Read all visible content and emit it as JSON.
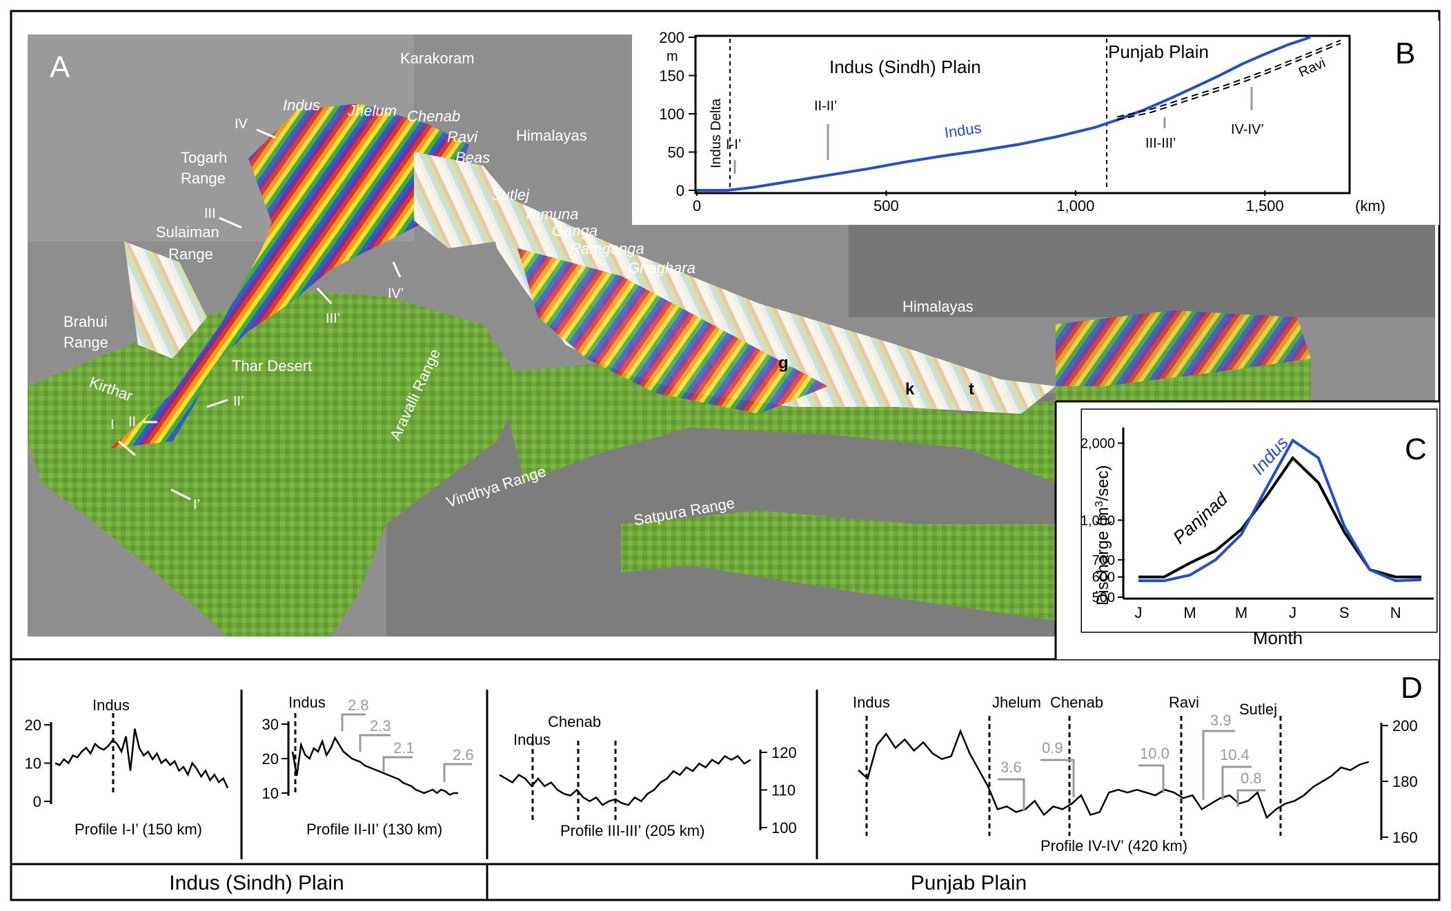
{
  "panel_a": {
    "letter": "A",
    "mountains": [
      "Karakoram",
      "Himalayas",
      "Himalayas"
    ],
    "ranges": {
      "togarh": [
        "Togarh",
        "Range"
      ],
      "sulaiman": [
        "Sulaiman",
        "Range"
      ],
      "brahui": [
        "Brahui",
        "Range"
      ],
      "kirthar": "Kirthar",
      "aravalli": "Aravalli Range",
      "vindhya": "Vindhya Range",
      "satpura": "Satpura Range"
    },
    "desert": "Thar Desert",
    "rivers": [
      "Indus",
      "Jhelum",
      "Chenab",
      "Ravi",
      "Beas",
      "Sutlej",
      "Yamuna",
      "Ganga",
      "Ramganga",
      "Ghaghara"
    ],
    "profile_marks": [
      "IV",
      "III",
      "I",
      "II",
      "II’",
      "III’",
      "IV’",
      "I’"
    ],
    "points": [
      "g",
      "k",
      "t"
    ]
  },
  "panel_b": {
    "letter": "B",
    "y_ticks": [
      "200",
      "150",
      "100",
      "50",
      "0"
    ],
    "y_unit": "m",
    "x_ticks": [
      "0",
      "500",
      "1,000",
      "1,500"
    ],
    "x_unit": "(km)",
    "regions": [
      "Indus (Sindh) Plain",
      "Punjab Plain"
    ],
    "delta": "Indus Delta",
    "profile_tags": [
      "I-I’",
      "II-II’",
      "III-III’",
      "IV-IV’"
    ],
    "series_labels": [
      "Indus",
      "Ravi"
    ]
  },
  "panel_c": {
    "letter": "C",
    "y_ticks": [
      "2,000",
      "1,000",
      "700",
      "600",
      "500"
    ],
    "ylabel_pre": "Discharge (m",
    "ylabel_sup": "3",
    "ylabel_post": "/sec)",
    "x_ticks": [
      "J",
      "M",
      "M",
      "J",
      "S",
      "N"
    ],
    "xlabel": "Month",
    "series_labels": [
      "Panjnad",
      "Indus"
    ],
    "colors": {
      "Panjnad": "#000000",
      "Indus": "#1f4fd6"
    }
  },
  "panel_d": {
    "letter": "D",
    "p1": {
      "caption": "Profile I-I’ (150 km)",
      "y_ticks": [
        "20",
        "10",
        "0"
      ],
      "rivers": [
        "Indus"
      ]
    },
    "p2": {
      "caption": "Profile II-II’ (130 km)",
      "y_ticks": [
        "30",
        "20",
        "10"
      ],
      "rivers": [
        "Indus"
      ],
      "steps": [
        "2.8",
        "2.3",
        "2.1",
        "2.6"
      ]
    },
    "p3": {
      "caption": "Profile III-III’ (205 km)",
      "y_ticks": [
        "120",
        "110",
        "100"
      ],
      "rivers": [
        "Indus",
        "Chenab"
      ]
    },
    "p4": {
      "caption": "Profile IV-IV’ (420 km)",
      "y_ticks": [
        "200",
        "180",
        "160"
      ],
      "rivers": [
        "Indus",
        "Jhelum",
        "Chenab",
        "Ravi",
        "Sutlej"
      ],
      "steps": [
        "3.6",
        "0.9",
        "10.0",
        "3.9",
        "10.4",
        "0.8"
      ]
    }
  },
  "footer": {
    "left": "Indus (Sindh) Plain",
    "right": "Punjab Plain"
  },
  "chart_data": [
    {
      "type": "line",
      "panel": "B",
      "xlabel": "(km)",
      "ylabel": "m",
      "xlim": [
        0,
        1720
      ],
      "ylim": [
        0,
        200
      ],
      "series": [
        {
          "name": "Indus",
          "color": "#1f4fd6",
          "x": [
            0,
            80,
            150,
            250,
            350,
            450,
            550,
            650,
            750,
            850,
            950,
            1050,
            1110,
            1180,
            1250,
            1320,
            1380,
            1440,
            1500,
            1560,
            1620
          ],
          "y": [
            0,
            0,
            4,
            12,
            20,
            28,
            37,
            45,
            52,
            60,
            70,
            82,
            92,
            105,
            120,
            136,
            150,
            165,
            178,
            190,
            200
          ]
        },
        {
          "name": "Ravi",
          "x": [
            1110,
            1200,
            1300,
            1400,
            1500,
            1600,
            1700
          ],
          "y": [
            92,
            102,
            118,
            134,
            152,
            172,
            192
          ]
        }
      ]
    },
    {
      "type": "line",
      "panel": "C",
      "xlabel": "Month",
      "ylabel": "Discharge (m3/sec)",
      "scale": "log",
      "categories": [
        "J",
        "F",
        "M",
        "A",
        "M",
        "J",
        "J",
        "A",
        "S",
        "O",
        "N",
        "D"
      ],
      "ylim": [
        500,
        2300
      ],
      "series": [
        {
          "name": "Panjnad",
          "color": "#000000",
          "values": [
            600,
            600,
            680,
            760,
            920,
            1250,
            1750,
            1400,
            900,
            640,
            600,
            600
          ]
        },
        {
          "name": "Indus",
          "color": "#1f4fd6",
          "values": [
            580,
            580,
            610,
            700,
            880,
            1350,
            2050,
            1750,
            950,
            640,
            580,
            585
          ]
        }
      ]
    },
    {
      "type": "line",
      "panel": "D",
      "title": "Profile I-I’ (150 km)",
      "ylim": [
        0,
        22
      ],
      "series": [
        {
          "values": [
            10,
            9.5,
            11,
            10,
            12,
            11.5,
            13,
            14,
            12.5,
            15,
            14,
            13.5,
            14.5,
            16,
            15,
            13,
            17,
            8,
            19,
            14,
            12,
            13,
            11,
            12.5,
            10,
            11,
            9.5,
            10.5,
            8,
            9,
            7,
            10,
            8.5,
            6.5,
            8,
            5.5,
            7,
            5,
            6,
            3.5
          ]
        }
      ]
    },
    {
      "type": "line",
      "panel": "D",
      "title": "Profile II-II’ (130 km)",
      "ylim": [
        8,
        32
      ],
      "series": [
        {
          "values": [
            22,
            15,
            24,
            21,
            20,
            23,
            22,
            25,
            21,
            23,
            26,
            24,
            22,
            21,
            20,
            19.5,
            19,
            18,
            17.5,
            17,
            16.5,
            16,
            15.5,
            15,
            14.5,
            14,
            13,
            12.5,
            12,
            11,
            10.5,
            10,
            10.5,
            11,
            10,
            11,
            10.5,
            9.5,
            10,
            10
          ]
        }
      ]
    },
    {
      "type": "line",
      "panel": "D",
      "title": "Profile III-III’ (205 km)",
      "ylim": [
        100,
        122
      ],
      "series": [
        {
          "values": [
            114,
            113,
            112,
            114,
            113,
            111,
            113,
            111,
            112,
            110,
            109,
            108.5,
            110,
            108,
            107,
            108,
            106,
            107,
            107.5,
            106.5,
            106,
            108,
            107,
            109,
            110,
            112,
            113,
            115,
            114,
            116,
            115,
            117,
            116,
            118,
            117,
            119,
            118,
            119,
            117,
            118
          ]
        }
      ]
    },
    {
      "type": "line",
      "panel": "D",
      "title": "Profile IV-IV’ (420 km)",
      "ylim": [
        158,
        202
      ],
      "series": [
        {
          "values": [
            184,
            181,
            193,
            197,
            192,
            195,
            191,
            194,
            190,
            188,
            189,
            198,
            190,
            184,
            178,
            170,
            171,
            169,
            170,
            173,
            168,
            171,
            170,
            172,
            175,
            168,
            169,
            176,
            177,
            176,
            177,
            176,
            175,
            177,
            176,
            174,
            175,
            170,
            172,
            174,
            175,
            172,
            173,
            176,
            167,
            170,
            172,
            173,
            175,
            178,
            180,
            182,
            185,
            184,
            186,
            187
          ]
        }
      ]
    }
  ]
}
